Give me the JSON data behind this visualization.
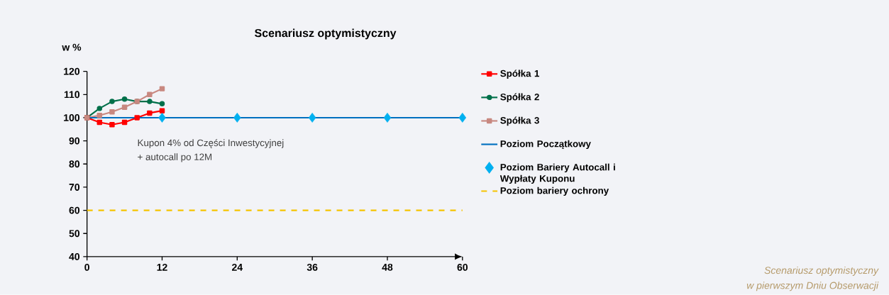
{
  "chart_data": {
    "type": "line",
    "title": "Scenariusz optymistyczny",
    "ylabel": "w %",
    "xlim": [
      0,
      60
    ],
    "ylim": [
      40,
      120
    ],
    "xticks": [
      0,
      12,
      24,
      36,
      48,
      60
    ],
    "yticks": [
      40,
      50,
      60,
      70,
      80,
      90,
      100,
      110,
      120
    ],
    "grid": false,
    "legend": "right",
    "annotations": [
      {
        "text": "Kupon 4% od Części Inwestycyjnej"
      },
      {
        "text": "+ autocall po 12M"
      },
      {
        "text": "Scenariusz optymistyczny"
      },
      {
        "text": "w pierwszym Dniu Obserwacji"
      }
    ],
    "series": [
      {
        "name": "Spółka 1",
        "color": "#ff0000",
        "marker": "square",
        "x": [
          0,
          2,
          4,
          6,
          8,
          10,
          12
        ],
        "values": [
          100,
          98,
          97,
          98,
          100,
          102,
          103
        ]
      },
      {
        "name": "Spółka 2",
        "color": "#00704a",
        "marker": "circle",
        "x": [
          0,
          2,
          4,
          6,
          8,
          10,
          12
        ],
        "values": [
          100,
          104,
          107,
          108,
          107,
          107,
          106
        ]
      },
      {
        "name": "Spółka 3",
        "color": "#c88880",
        "marker": "square",
        "x": [
          0,
          2,
          4,
          6,
          8,
          10,
          12
        ],
        "values": [
          100,
          101,
          102.5,
          104.5,
          107,
          110,
          112.5
        ]
      },
      {
        "name": "Poziom Początkowy",
        "color": "#0070c0",
        "marker": "none",
        "x": [
          0,
          60
        ],
        "values": [
          100,
          100
        ]
      },
      {
        "name": "Poziom Bariery Autocall i Wypłaty Kuponu",
        "type": "scatter",
        "color": "#00b0f0",
        "marker": "diamond",
        "x": [
          12,
          24,
          36,
          48,
          60
        ],
        "values": [
          100,
          100,
          100,
          100,
          100
        ]
      },
      {
        "name": "Poziom bariery ochrony",
        "color": "#f5c400",
        "marker": "none",
        "line_style": "dashed",
        "x": [
          0,
          60
        ],
        "values": [
          60,
          60
        ]
      }
    ]
  }
}
